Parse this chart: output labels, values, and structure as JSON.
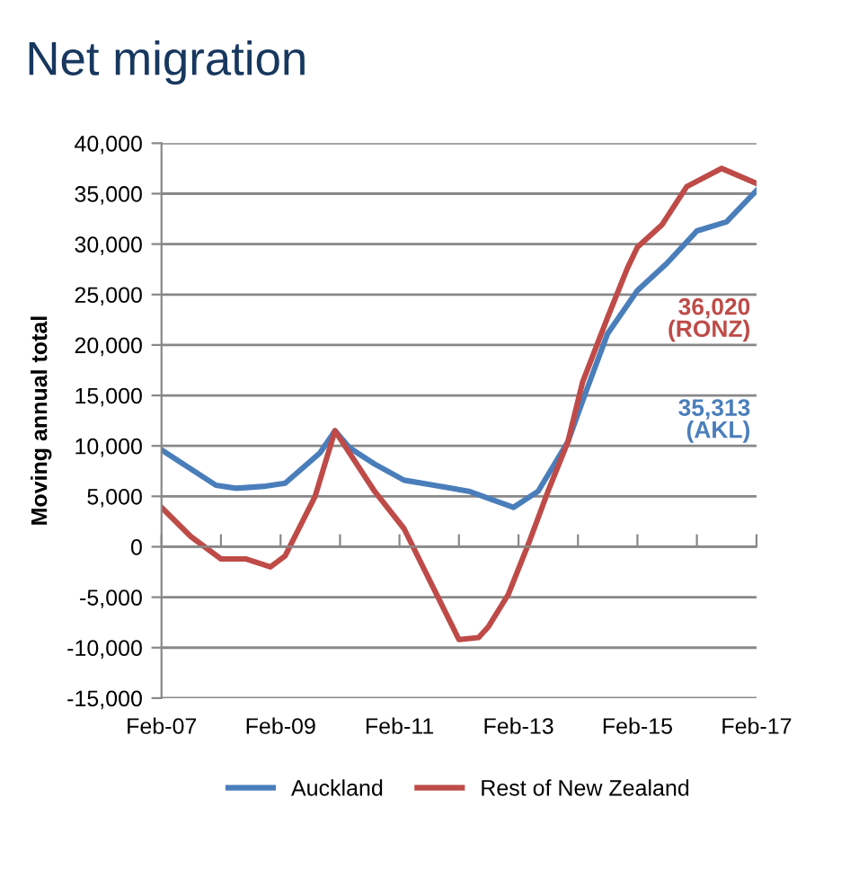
{
  "chart_data": {
    "type": "line",
    "title": "Net migration",
    "ylabel": "Moving annual total",
    "xlim": [
      "2007-02",
      "2017-02"
    ],
    "xticks": [
      {
        "value": "2007-02",
        "label": "Feb-07"
      },
      {
        "value": "2008-02",
        "label": null
      },
      {
        "value": "2009-02",
        "label": "Feb-09"
      },
      {
        "value": "2010-02",
        "label": null
      },
      {
        "value": "2011-02",
        "label": "Feb-11"
      },
      {
        "value": "2012-02",
        "label": null
      },
      {
        "value": "2013-02",
        "label": "Feb-13"
      },
      {
        "value": "2014-02",
        "label": null
      },
      {
        "value": "2015-02",
        "label": "Feb-15"
      },
      {
        "value": "2016-02",
        "label": null
      },
      {
        "value": "2017-02",
        "label": "Feb-17"
      }
    ],
    "ylim": [
      -15000,
      40000
    ],
    "yticks": [
      {
        "value": -15000,
        "label": "-15,000"
      },
      {
        "value": -10000,
        "label": "-10,000"
      },
      {
        "value": -5000,
        "label": "-5,000"
      },
      0,
      {
        "value": 5000,
        "label": "5,000"
      },
      {
        "value": 10000,
        "label": "10,000"
      },
      {
        "value": 15000,
        "label": "15,000"
      },
      {
        "value": 20000,
        "label": "20,000"
      },
      {
        "value": 25000,
        "label": "25,000"
      },
      {
        "value": 30000,
        "label": "30,000"
      },
      {
        "value": 35000,
        "label": "35,000"
      },
      {
        "value": 40000,
        "label": "40,000"
      }
    ],
    "grid": "y",
    "legend": "bottom",
    "series": [
      {
        "name": "Auckland",
        "color": "#4a7ebb",
        "x": [
          "2007-02",
          "2008-01",
          "2008-05",
          "2008-11",
          "2009-03",
          "2009-10",
          "2010-01",
          "2010-04",
          "2010-09",
          "2011-03",
          "2011-09",
          "2012-04",
          "2013-01",
          "2013-06",
          "2013-12",
          "2014-04",
          "2014-08",
          "2015-02",
          "2015-08",
          "2016-02",
          "2016-08",
          "2017-02"
        ],
        "values": [
          9600,
          6100,
          5800,
          6000,
          6300,
          9300,
          11500,
          9800,
          8200,
          6600,
          6100,
          5500,
          3900,
          5500,
          10400,
          15800,
          21100,
          25400,
          28100,
          31300,
          32200,
          35313
        ]
      },
      {
        "name": "Rest of New Zealand",
        "color": "#be4b48",
        "x": [
          "2007-02",
          "2007-08",
          "2008-02",
          "2008-07",
          "2008-12",
          "2009-03",
          "2009-09",
          "2010-01",
          "2010-09",
          "2011-03",
          "2011-09",
          "2012-02",
          "2012-06",
          "2012-08",
          "2012-12",
          "2013-04",
          "2013-08",
          "2013-12",
          "2014-03",
          "2014-08",
          "2014-12",
          "2015-02",
          "2015-07",
          "2015-12",
          "2016-07",
          "2017-02"
        ],
        "values": [
          3900,
          1000,
          -1200,
          -1200,
          -2000,
          -900,
          5000,
          11500,
          5500,
          1800,
          -4200,
          -9200,
          -9000,
          -7900,
          -4700,
          200,
          5500,
          10400,
          16300,
          22700,
          27600,
          29700,
          31900,
          35700,
          37500,
          36020
        ]
      }
    ],
    "annotations": [
      "35,313\n(AKL)",
      "36,020\n(RONZ)"
    ]
  }
}
